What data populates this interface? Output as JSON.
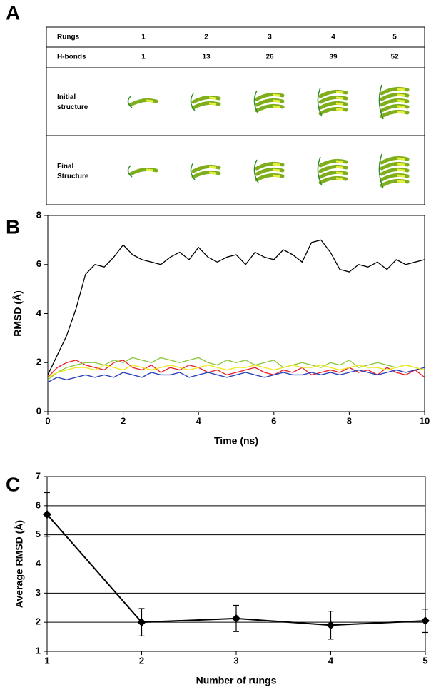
{
  "panel_labels": [
    "A",
    "B",
    "C"
  ],
  "table": {
    "rows": [
      [
        "Rungs",
        "1",
        "2",
        "3",
        "4",
        "5"
      ],
      [
        "H-bonds",
        "1",
        "13",
        "26",
        "39",
        "52"
      ],
      [
        "Initial structure"
      ],
      [
        "Final Structure"
      ]
    ]
  },
  "chart_data": [
    {
      "type": "line",
      "xlabel": "Time (ns)",
      "ylabel": "RMSD (Å)",
      "x": [
        0,
        0.25,
        0.5,
        0.75,
        1,
        1.25,
        1.5,
        1.75,
        2,
        2.25,
        2.5,
        2.75,
        3,
        3.25,
        3.5,
        3.75,
        4,
        4.25,
        4.5,
        4.75,
        5,
        5.25,
        5.5,
        5.75,
        6,
        6.25,
        6.5,
        6.75,
        7,
        7.25,
        7.5,
        7.75,
        8,
        8.25,
        8.5,
        8.75,
        9,
        9.25,
        9.5,
        9.75,
        10
      ],
      "series": [
        {
          "color": "#e8202a",
          "values": [
            1.4,
            1.8,
            2.0,
            2.1,
            1.9,
            1.8,
            1.7,
            2.0,
            2.1,
            1.8,
            1.7,
            1.9,
            1.6,
            1.8,
            1.7,
            1.9,
            1.8,
            1.6,
            1.7,
            1.5,
            1.6,
            1.7,
            1.8,
            1.6,
            1.5,
            1.7,
            1.6,
            1.8,
            1.5,
            1.6,
            1.7,
            1.6,
            1.8,
            1.6,
            1.7,
            1.5,
            1.8,
            1.6,
            1.5,
            1.7,
            1.4
          ]
        },
        {
          "color": "#2a3fb8",
          "values": [
            1.2,
            1.4,
            1.3,
            1.4,
            1.5,
            1.4,
            1.5,
            1.4,
            1.6,
            1.5,
            1.4,
            1.6,
            1.5,
            1.5,
            1.6,
            1.4,
            1.5,
            1.6,
            1.5,
            1.4,
            1.5,
            1.6,
            1.5,
            1.4,
            1.5,
            1.6,
            1.5,
            1.5,
            1.6,
            1.5,
            1.6,
            1.5,
            1.6,
            1.7,
            1.6,
            1.5,
            1.6,
            1.7,
            1.6,
            1.7,
            1.8
          ]
        },
        {
          "color": "#8cc63e",
          "values": [
            1.3,
            1.6,
            1.8,
            1.9,
            2.0,
            2.0,
            1.9,
            2.1,
            2.0,
            2.2,
            2.1,
            2.0,
            2.2,
            2.1,
            2.0,
            2.1,
            2.2,
            2.0,
            1.9,
            2.1,
            2.0,
            2.1,
            1.9,
            2.0,
            2.1,
            1.8,
            1.9,
            2.0,
            1.9,
            1.8,
            2.0,
            1.9,
            2.1,
            1.8,
            1.9,
            2.0,
            1.9,
            1.8,
            1.9,
            1.8,
            1.7
          ]
        },
        {
          "color": "#f2e81c",
          "values": [
            1.4,
            1.6,
            1.7,
            1.8,
            1.8,
            1.7,
            1.9,
            1.8,
            1.7,
            1.9,
            1.8,
            1.7,
            1.8,
            1.9,
            1.8,
            1.7,
            1.8,
            1.9,
            1.8,
            1.7,
            1.8,
            1.8,
            1.9,
            1.8,
            1.7,
            1.8,
            1.9,
            1.8,
            1.8,
            1.9,
            1.8,
            1.7,
            1.8,
            1.9,
            1.8,
            1.8,
            1.7,
            1.8,
            1.9,
            1.8,
            1.7
          ]
        },
        {
          "color": "#000000",
          "values": [
            1.5,
            2.3,
            3.1,
            4.2,
            5.6,
            6.0,
            5.9,
            6.3,
            6.8,
            6.4,
            6.2,
            6.1,
            6.0,
            6.3,
            6.5,
            6.2,
            6.7,
            6.3,
            6.1,
            6.3,
            6.4,
            6.0,
            6.5,
            6.3,
            6.2,
            6.6,
            6.4,
            6.1,
            6.9,
            7.0,
            6.5,
            5.8,
            5.7,
            6.0,
            5.9,
            6.1,
            5.8,
            6.2,
            6.0,
            6.1,
            6.2
          ]
        }
      ],
      "xlim": [
        0,
        10
      ],
      "xticks": [
        0,
        2,
        4,
        6,
        8,
        10
      ],
      "ylim": [
        0,
        8
      ],
      "yticks": [
        0,
        2,
        4,
        6,
        8
      ],
      "grid": false
    },
    {
      "type": "line",
      "xlabel": "Number of rungs",
      "ylabel": "Average RMSD (Å)",
      "x": [
        1,
        2,
        3,
        4,
        5
      ],
      "series": [
        {
          "color": "#000000",
          "values": [
            5.7,
            2.0,
            2.13,
            1.9,
            2.05
          ],
          "errors": [
            0.75,
            0.47,
            0.45,
            0.48,
            0.4
          ]
        }
      ],
      "marker": "diamond",
      "xlim": [
        1,
        5
      ],
      "xticks": [
        1,
        2,
        3,
        4,
        5
      ],
      "ylim": [
        1,
        7
      ],
      "yticks": [
        1,
        2,
        3,
        4,
        5,
        6,
        7
      ],
      "grid": true
    }
  ]
}
